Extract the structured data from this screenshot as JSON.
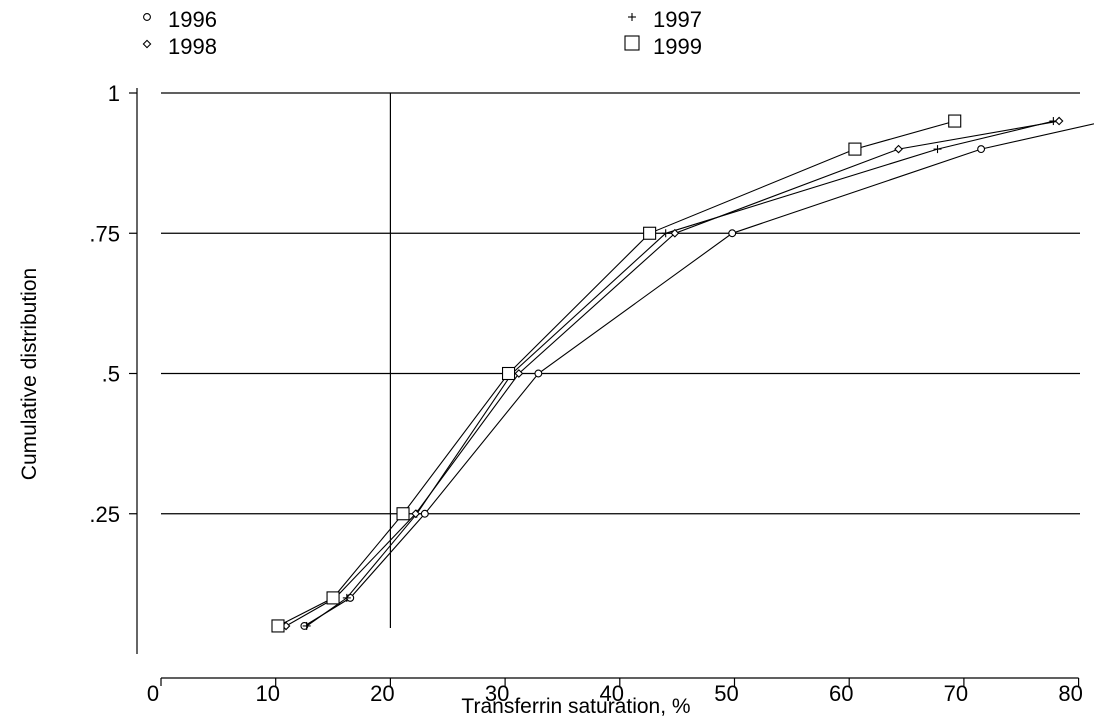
{
  "chart_data": {
    "type": "line",
    "xlabel": "Transferrin saturation, %",
    "ylabel": "Cumulative distribution",
    "xlim": [
      0,
      82.5
    ],
    "ylim": [
      0.05,
      1.0
    ],
    "x_ticks": [
      0,
      10,
      20,
      30,
      40,
      50,
      60,
      70,
      80
    ],
    "x_tick_labels": [
      "0",
      "10",
      "20",
      "30",
      "40",
      "50",
      "60",
      "70",
      "80"
    ],
    "y_ticks": [
      0.25,
      0.5,
      0.75,
      1.0
    ],
    "y_tick_labels": [
      ".25",
      ".5",
      ".75",
      "1"
    ],
    "grid": "horizontal",
    "reference_line_x": 20,
    "legend_position": "top",
    "series": [
      {
        "name": "1996",
        "marker": "circle",
        "x": [
          12.5,
          16.5,
          23.0,
          32.9,
          49.8,
          71.5,
          82.4
        ],
        "y": [
          0.05,
          0.1,
          0.25,
          0.5,
          0.75,
          0.9,
          0.95
        ]
      },
      {
        "name": "1997",
        "marker": "plus",
        "x": [
          12.7,
          16.2,
          22.3,
          30.6,
          44.0,
          67.7,
          77.8
        ],
        "y": [
          0.05,
          0.1,
          0.25,
          0.5,
          0.75,
          0.9,
          0.95
        ]
      },
      {
        "name": "1998",
        "marker": "diamond",
        "x": [
          10.9,
          15.2,
          22.2,
          31.2,
          44.8,
          64.3,
          78.3
        ],
        "y": [
          0.05,
          0.1,
          0.25,
          0.5,
          0.75,
          0.9,
          0.95
        ]
      },
      {
        "name": "1999",
        "marker": "square",
        "x": [
          10.2,
          15.0,
          21.1,
          30.3,
          42.6,
          60.5,
          69.2
        ],
        "y": [
          0.05,
          0.1,
          0.25,
          0.5,
          0.75,
          0.9,
          0.95
        ]
      }
    ]
  }
}
